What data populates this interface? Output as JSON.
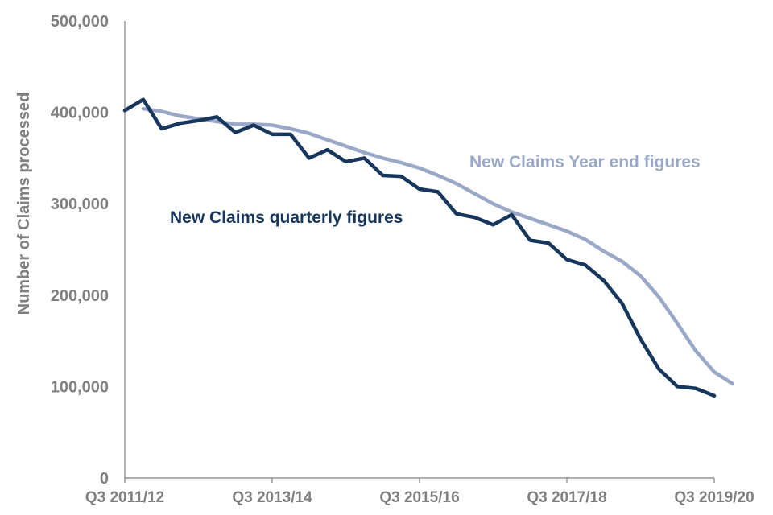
{
  "chart_data": {
    "type": "line",
    "title": "",
    "ylabel": "Number of Claims processed",
    "xlabel": "",
    "ylim": [
      0,
      500000
    ],
    "y_ticks": [
      "0",
      "100,000",
      "200,000",
      "300,000",
      "400,000",
      "500,000"
    ],
    "y_tick_values": [
      0,
      100000,
      200000,
      300000,
      400000,
      500000
    ],
    "x_tick_labels": [
      "Q3 2011/12",
      "Q3 2013/14",
      "Q3 2015/16",
      "Q3 2017/18",
      "Q3 2019/20"
    ],
    "x_tick_indices": [
      0,
      8,
      16,
      24,
      32
    ],
    "x_count": 33,
    "grid": false,
    "series": [
      {
        "name": "New Claims quarterly figures",
        "color": "#16365c",
        "start_index": 0,
        "values": [
          402000,
          414000,
          382000,
          388000,
          391000,
          395000,
          378000,
          386000,
          376000,
          376000,
          350000,
          359000,
          346000,
          350000,
          331000,
          330000,
          316000,
          313000,
          289000,
          285000,
          277000,
          288000,
          260000,
          257000,
          239000,
          233000,
          216000,
          191000,
          152000,
          119000,
          100000,
          98000,
          90000
        ]
      },
      {
        "name": "New Claims Year end figures",
        "color": "#9aa8c8",
        "start_index": 1,
        "values": [
          404000,
          401000,
          396000,
          393000,
          390000,
          387000,
          387000,
          386000,
          382000,
          377000,
          370000,
          363000,
          356000,
          350000,
          345000,
          339000,
          331000,
          322000,
          311000,
          300000,
          291000,
          284000,
          277000,
          270000,
          261000,
          248000,
          237000,
          221000,
          198000,
          169000,
          139000,
          116000,
          103000
        ]
      }
    ]
  }
}
